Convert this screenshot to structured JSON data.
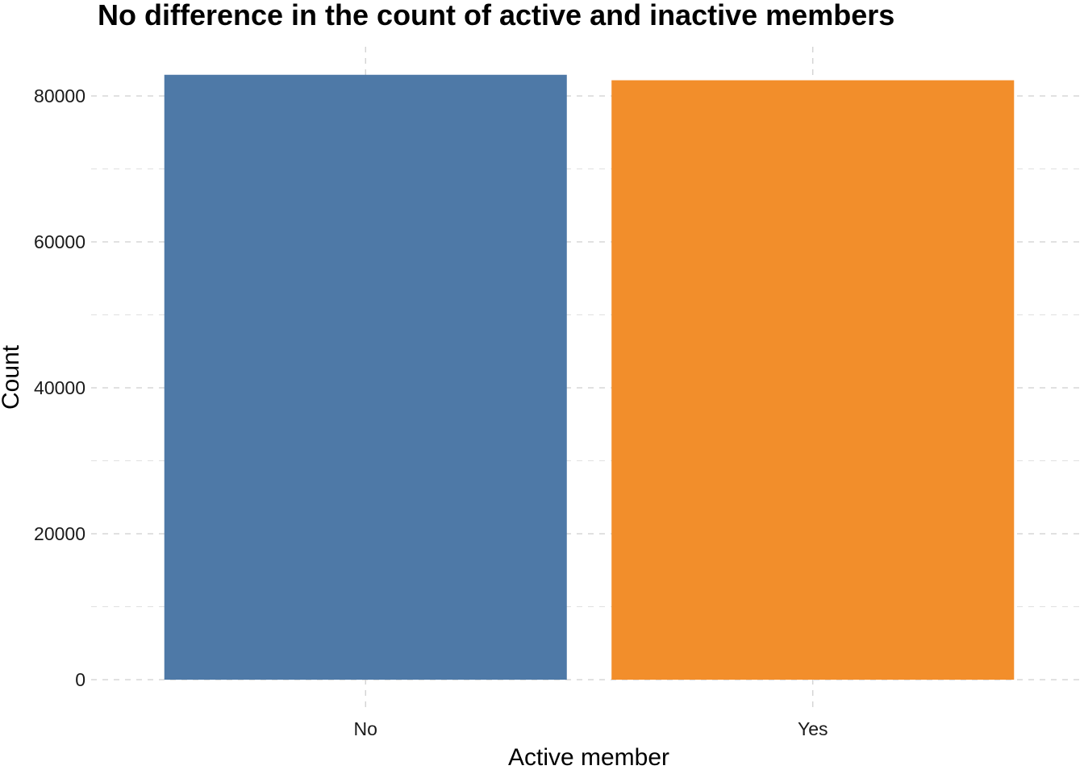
{
  "chart_data": {
    "type": "bar",
    "title": "No difference in the count of active and inactive members",
    "xlabel": "Active member",
    "ylabel": "Count",
    "categories": [
      "No",
      "Yes"
    ],
    "values": [
      82900,
      82150
    ],
    "colors": [
      "#4E79A7",
      "#F28E2B"
    ],
    "ylim": [
      0,
      86500
    ],
    "yticks": [
      0,
      20000,
      40000,
      60000,
      80000
    ],
    "ytick_labels": [
      "0",
      "20000",
      "40000",
      "60000",
      "80000"
    ],
    "grid": true,
    "grid_style": "dashed",
    "legend": "none"
  }
}
